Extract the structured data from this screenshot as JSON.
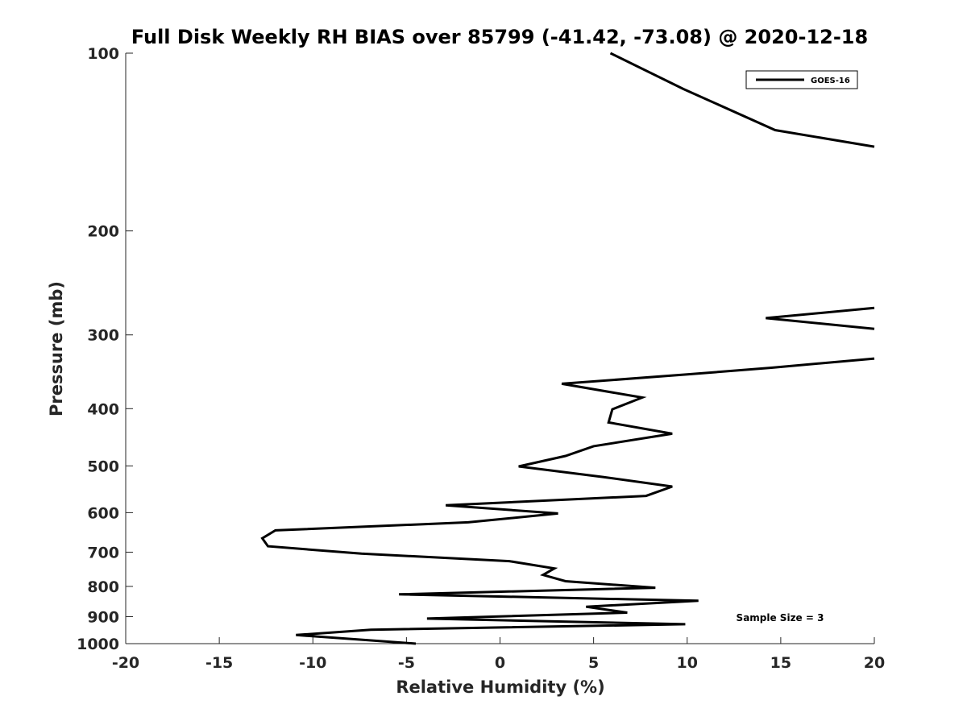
{
  "chart_data": {
    "type": "line",
    "title": "Full Disk Weekly RH BIAS over 85799 (-41.42, -73.08) @ 2020-12-18",
    "xlabel": "Relative Humidity (%)",
    "ylabel": "Pressure (mb)",
    "xlim": [
      -20,
      20
    ],
    "ylim": [
      1000,
      100
    ],
    "yscale": "log",
    "xticks": [
      -20,
      -15,
      -10,
      -5,
      0,
      5,
      10,
      15,
      20
    ],
    "xtick_labels": [
      "-20",
      "-15",
      "-10",
      "-5",
      "0",
      "5",
      "10",
      "15",
      "20"
    ],
    "yticks": [
      100,
      200,
      300,
      400,
      500,
      600,
      700,
      800,
      900,
      1000
    ],
    "ytick_labels": [
      "100",
      "200",
      "300",
      "400",
      "500",
      "600",
      "700",
      "800",
      "900",
      "1000"
    ],
    "grid": false,
    "legend_position": "top-right",
    "annotation": "Sample Size = 3",
    "series": [
      {
        "name": "GOES-16",
        "color": "#000000",
        "points": [
          {
            "x": 5.9,
            "p": 100
          },
          {
            "x": 9.8,
            "p": 115
          },
          {
            "x": 14.7,
            "p": 135
          },
          {
            "x": 20.0,
            "p": 144
          },
          {
            "x": null,
            "p": null
          },
          {
            "x": 20.0,
            "p": 270
          },
          {
            "x": 14.2,
            "p": 281
          },
          {
            "x": 20.0,
            "p": 293
          },
          {
            "x": null,
            "p": null
          },
          {
            "x": 20.0,
            "p": 329
          },
          {
            "x": 14.5,
            "p": 341
          },
          {
            "x": 10.0,
            "p": 350
          },
          {
            "x": 3.3,
            "p": 363
          },
          {
            "x": 7.6,
            "p": 383
          },
          {
            "x": 6.0,
            "p": 401
          },
          {
            "x": 5.8,
            "p": 422
          },
          {
            "x": 9.2,
            "p": 441
          },
          {
            "x": 5.0,
            "p": 463
          },
          {
            "x": 3.5,
            "p": 481
          },
          {
            "x": 1.0,
            "p": 501
          },
          {
            "x": 5.5,
            "p": 522
          },
          {
            "x": 9.2,
            "p": 542
          },
          {
            "x": 7.8,
            "p": 562
          },
          {
            "x": -2.9,
            "p": 583
          },
          {
            "x": 3.1,
            "p": 602
          },
          {
            "x": -1.7,
            "p": 623
          },
          {
            "x": -12.0,
            "p": 643
          },
          {
            "x": -12.7,
            "p": 663
          },
          {
            "x": -12.4,
            "p": 684
          },
          {
            "x": -7.4,
            "p": 704
          },
          {
            "x": 0.5,
            "p": 725
          },
          {
            "x": 2.9,
            "p": 746
          },
          {
            "x": 2.3,
            "p": 765
          },
          {
            "x": 3.5,
            "p": 784
          },
          {
            "x": 8.3,
            "p": 804
          },
          {
            "x": -5.4,
            "p": 825
          },
          {
            "x": 10.6,
            "p": 846
          },
          {
            "x": 4.6,
            "p": 866
          },
          {
            "x": 6.8,
            "p": 886
          },
          {
            "x": -3.9,
            "p": 907
          },
          {
            "x": 9.9,
            "p": 927
          },
          {
            "x": -6.9,
            "p": 947
          },
          {
            "x": -10.9,
            "p": 967
          },
          {
            "x": -4.5,
            "p": 1000
          }
        ]
      }
    ]
  }
}
